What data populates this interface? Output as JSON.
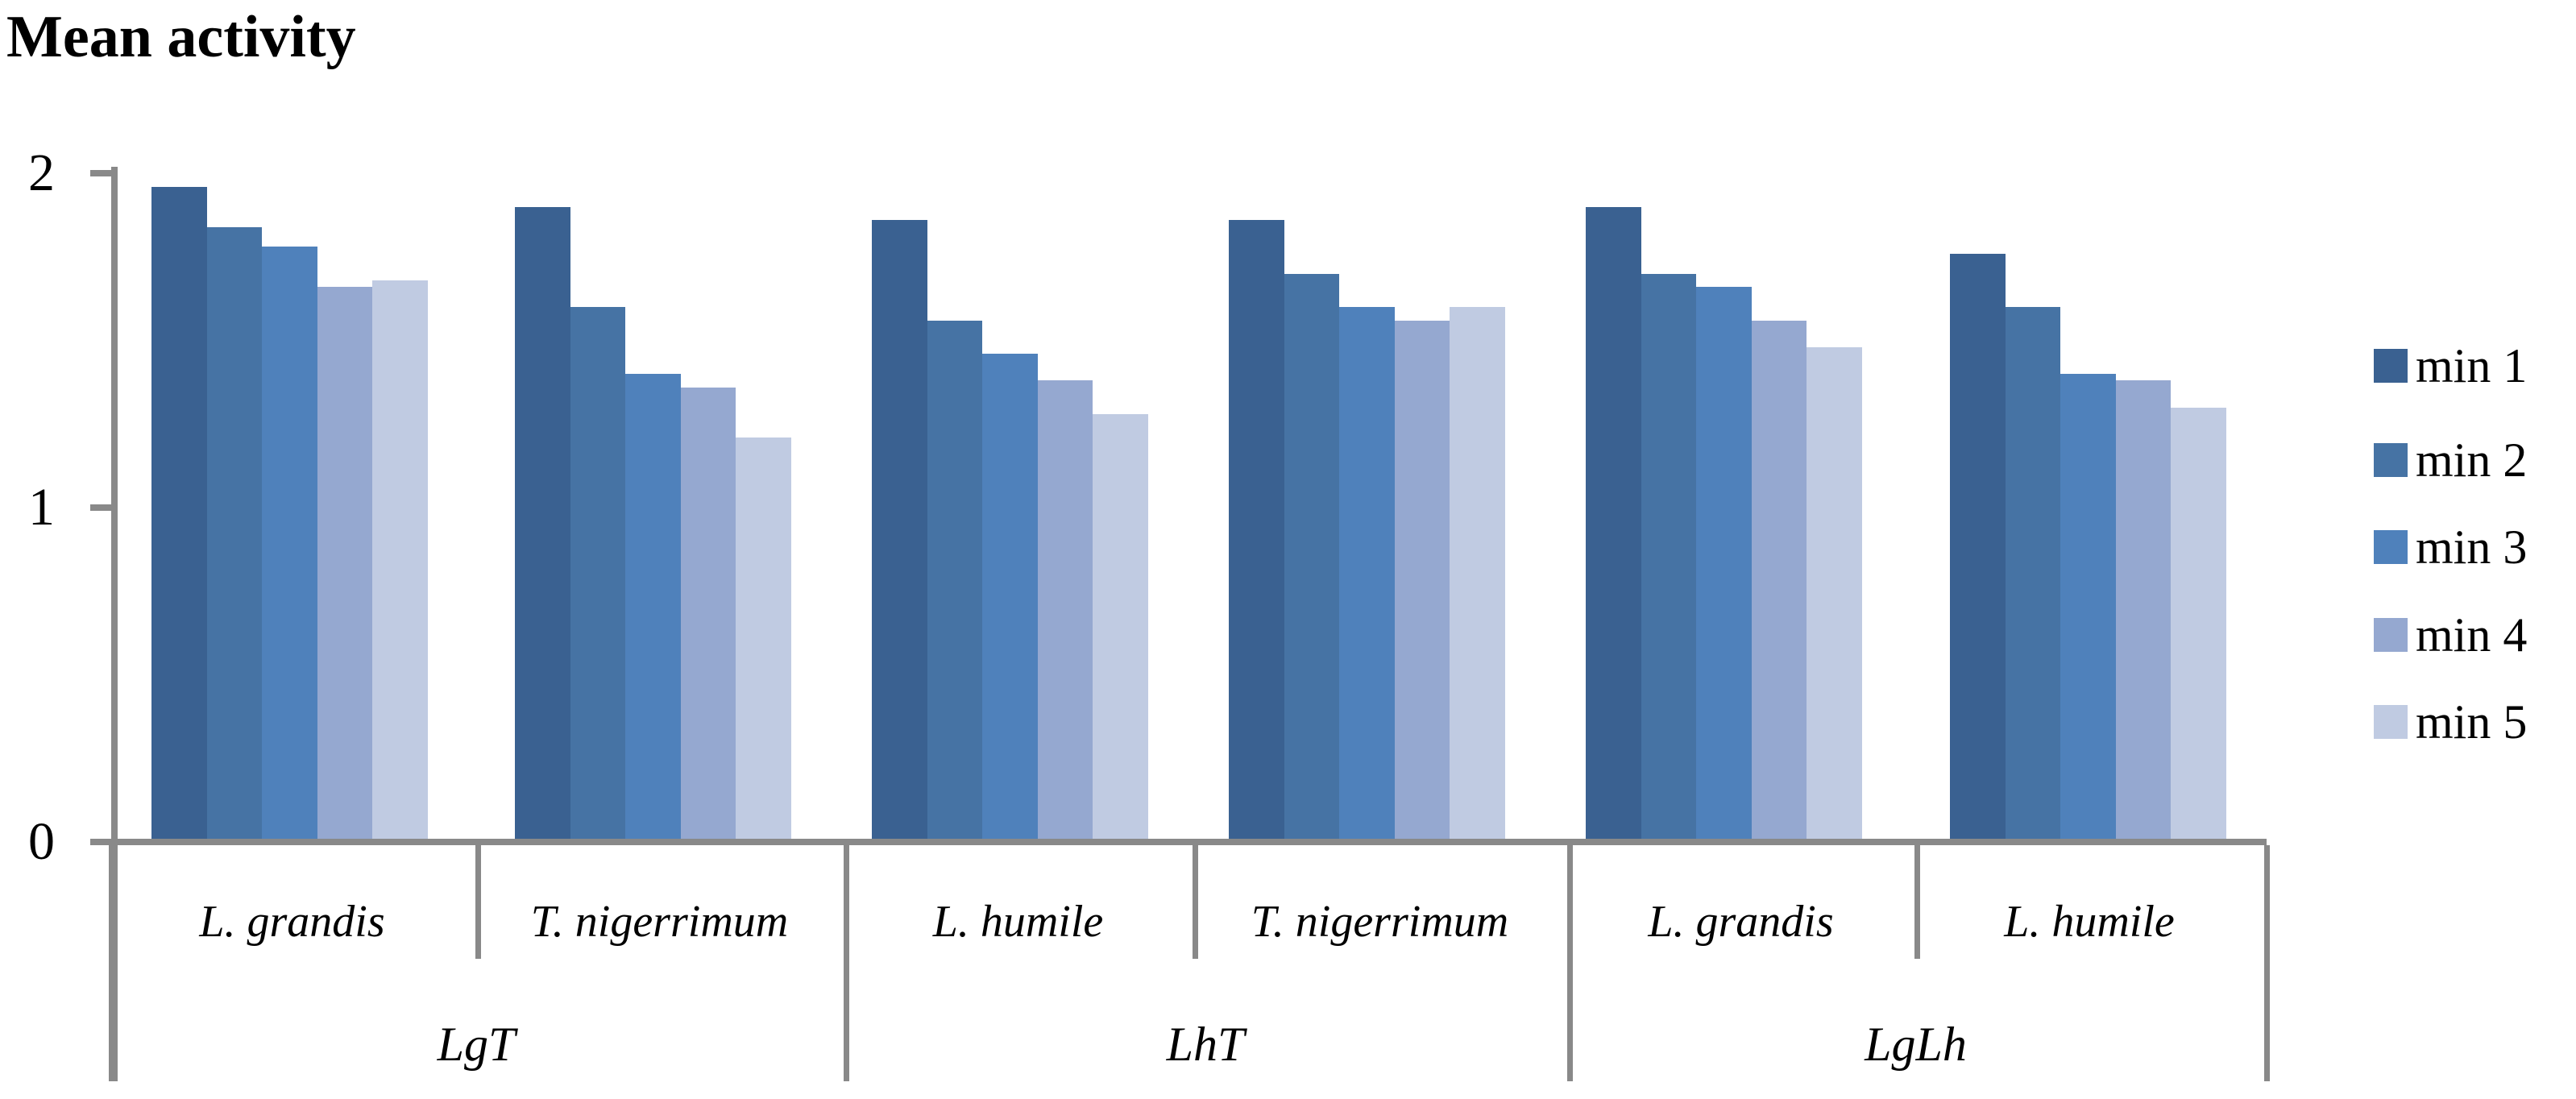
{
  "chart_data": {
    "type": "bar",
    "title": "Mean activity",
    "ylabel": "Mean activity",
    "xlabel": "",
    "ylim": [
      0,
      2
    ],
    "yticks": [
      "0",
      "1",
      "2"
    ],
    "grid": false,
    "legend_position": "right",
    "axis_color": "#898989",
    "text_color": "#000000",
    "series": [
      {
        "name": "min 1",
        "color": "#3a6191"
      },
      {
        "name": "min 2",
        "color": "#4673a4"
      },
      {
        "name": "min 3",
        "color": "#4f81bb"
      },
      {
        "name": "min 4",
        "color": "#95a8d0"
      },
      {
        "name": "min 5",
        "color": "#c0cbe2"
      }
    ],
    "groups": [
      {
        "species": "L. grandis",
        "treatment": "LgT",
        "values": [
          1.95,
          1.83,
          1.77,
          1.65,
          1.67
        ]
      },
      {
        "species": "T. nigerrimum",
        "treatment": "LgT",
        "values": [
          1.89,
          1.59,
          1.39,
          1.35,
          1.2
        ]
      },
      {
        "species": "L. humile",
        "treatment": "LhT",
        "values": [
          1.85,
          1.55,
          1.45,
          1.37,
          1.27
        ]
      },
      {
        "species": "T. nigerrimum",
        "treatment": "LhT",
        "values": [
          1.85,
          1.69,
          1.59,
          1.55,
          1.59
        ]
      },
      {
        "species": "L. grandis",
        "treatment": "LgLh",
        "values": [
          1.89,
          1.69,
          1.65,
          1.55,
          1.47
        ]
      },
      {
        "species": "L. humile",
        "treatment": "LgLh",
        "values": [
          1.75,
          1.59,
          1.39,
          1.37,
          1.29
        ]
      }
    ],
    "treatments": [
      {
        "label": "LgT",
        "species": [
          "L. grandis",
          "T. nigerrimum"
        ]
      },
      {
        "label": "LhT",
        "species": [
          "L. humile",
          "T. nigerrimum"
        ]
      },
      {
        "label": "LgLh",
        "species": [
          "L. grandis",
          "L. humile"
        ]
      }
    ]
  }
}
